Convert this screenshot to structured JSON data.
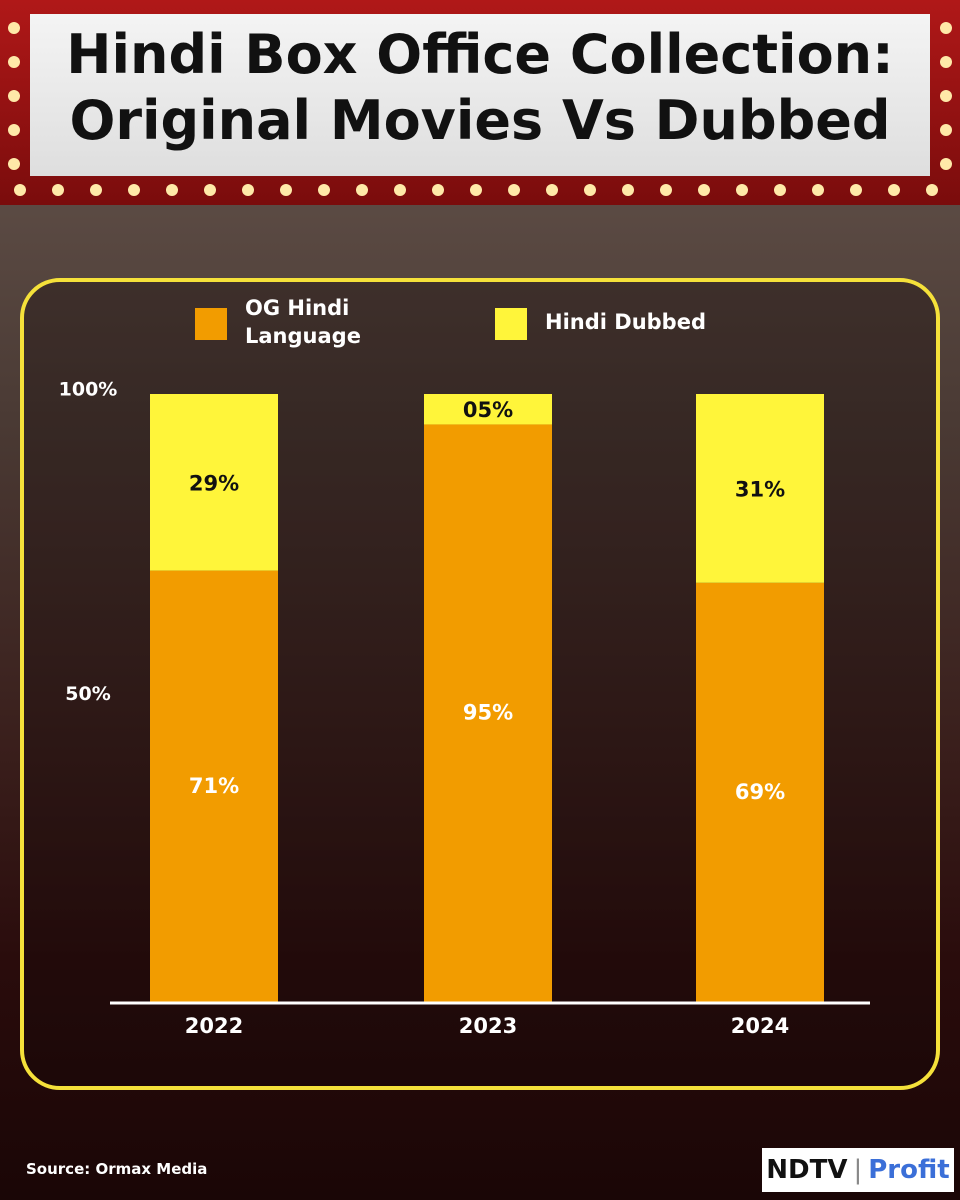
{
  "chart_data": {
    "type": "stacked-bar",
    "title": "Hindi Box Office Collection: Original Movies Vs Dubbed",
    "categories": [
      "2022",
      "2023",
      "2024"
    ],
    "series": [
      {
        "name": "OG Hindi Language",
        "color": "#f29c00",
        "values": [
          71,
          95,
          69
        ],
        "value_labels": [
          "71%",
          "95%",
          "69%"
        ]
      },
      {
        "name": "Hindi Dubbed",
        "color": "#fff53a",
        "values": [
          29,
          5,
          31
        ],
        "value_labels": [
          "29%",
          "05%",
          "31%"
        ]
      }
    ],
    "ylim": [
      0,
      100
    ],
    "yticks": [
      {
        "value": 50,
        "label": "50%"
      },
      {
        "value": 100,
        "label": "100%"
      }
    ],
    "source": "Source: Ormax Media"
  },
  "logo": {
    "left": "NDTV",
    "right": "Profit"
  }
}
